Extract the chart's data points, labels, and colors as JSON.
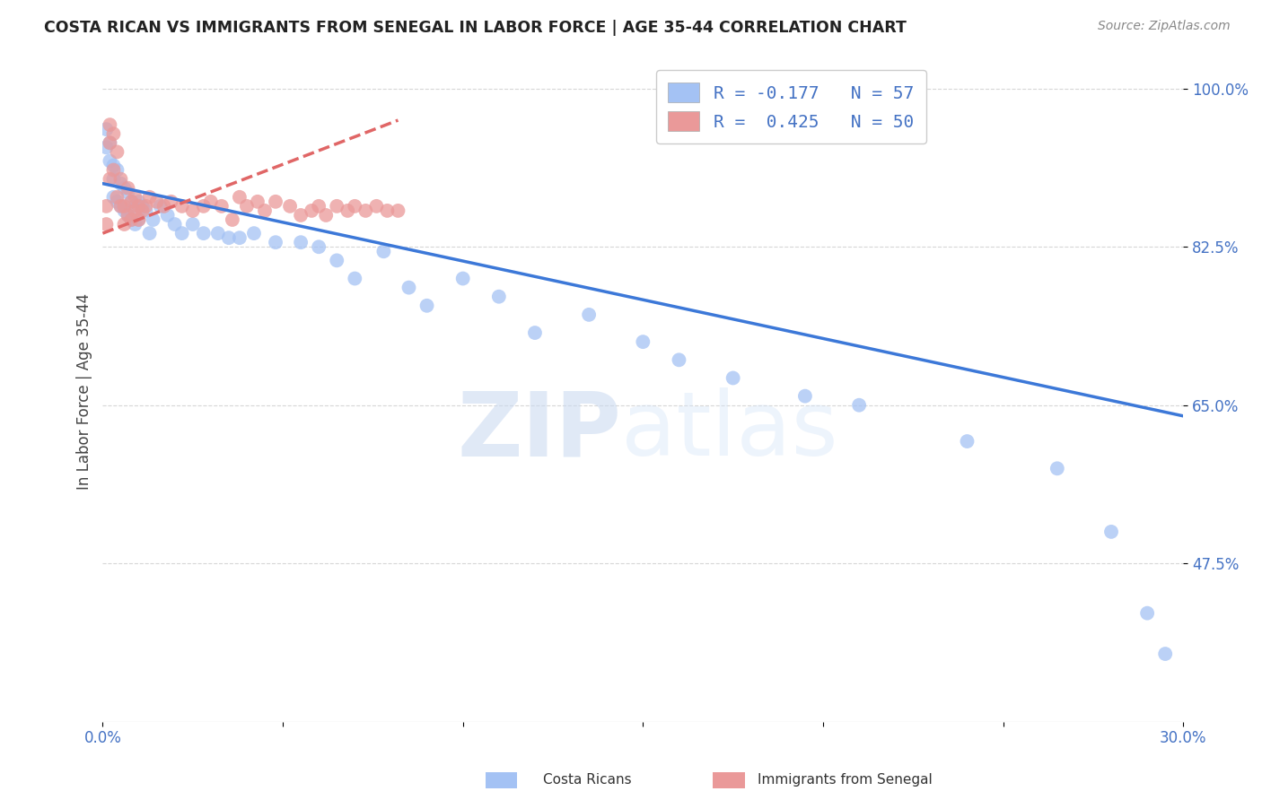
{
  "title": "COSTA RICAN VS IMMIGRANTS FROM SENEGAL IN LABOR FORCE | AGE 35-44 CORRELATION CHART",
  "source": "Source: ZipAtlas.com",
  "ylabel": "In Labor Force | Age 35-44",
  "xlim": [
    0.0,
    0.3
  ],
  "ylim": [
    0.3,
    1.03
  ],
  "xticks": [
    0.0,
    0.05,
    0.1,
    0.15,
    0.2,
    0.25,
    0.3
  ],
  "xticklabels": [
    "0.0%",
    "",
    "",
    "",
    "",
    "",
    "30.0%"
  ],
  "yticks": [
    0.475,
    0.65,
    0.825,
    1.0
  ],
  "yticklabels": [
    "47.5%",
    "65.0%",
    "82.5%",
    "100.0%"
  ],
  "blue_color": "#a4c2f4",
  "pink_color": "#ea9999",
  "blue_line_color": "#3c78d8",
  "pink_line_color": "#e06666",
  "watermark_zip": "ZIP",
  "watermark_atlas": "atlas",
  "legend_line1": "R = -0.177   N = 57",
  "legend_line2": "R =  0.425   N = 50",
  "legend_label_blue": "Costa Ricans",
  "legend_label_pink": "Immigrants from Senegal",
  "blue_dots_x": [
    0.001,
    0.001,
    0.002,
    0.002,
    0.003,
    0.003,
    0.003,
    0.004,
    0.004,
    0.005,
    0.005,
    0.006,
    0.006,
    0.007,
    0.007,
    0.008,
    0.008,
    0.009,
    0.009,
    0.01,
    0.01,
    0.011,
    0.012,
    0.013,
    0.014,
    0.016,
    0.018,
    0.02,
    0.022,
    0.025,
    0.028,
    0.032,
    0.035,
    0.038,
    0.042,
    0.048,
    0.055,
    0.06,
    0.065,
    0.07,
    0.078,
    0.085,
    0.09,
    0.1,
    0.11,
    0.12,
    0.135,
    0.15,
    0.16,
    0.175,
    0.195,
    0.21,
    0.24,
    0.265,
    0.28,
    0.29,
    0.295
  ],
  "blue_dots_y": [
    0.955,
    0.935,
    0.94,
    0.92,
    0.915,
    0.9,
    0.88,
    0.91,
    0.875,
    0.895,
    0.87,
    0.89,
    0.865,
    0.885,
    0.86,
    0.875,
    0.855,
    0.87,
    0.85,
    0.875,
    0.855,
    0.87,
    0.865,
    0.84,
    0.855,
    0.87,
    0.86,
    0.85,
    0.84,
    0.85,
    0.84,
    0.84,
    0.835,
    0.835,
    0.84,
    0.83,
    0.83,
    0.825,
    0.81,
    0.79,
    0.82,
    0.78,
    0.76,
    0.79,
    0.77,
    0.73,
    0.75,
    0.72,
    0.7,
    0.68,
    0.66,
    0.65,
    0.61,
    0.58,
    0.51,
    0.42,
    0.375
  ],
  "pink_dots_x": [
    0.001,
    0.001,
    0.002,
    0.002,
    0.002,
    0.003,
    0.003,
    0.004,
    0.004,
    0.005,
    0.005,
    0.006,
    0.006,
    0.007,
    0.007,
    0.008,
    0.008,
    0.009,
    0.009,
    0.01,
    0.01,
    0.011,
    0.012,
    0.013,
    0.015,
    0.017,
    0.019,
    0.022,
    0.025,
    0.028,
    0.03,
    0.033,
    0.036,
    0.038,
    0.04,
    0.043,
    0.045,
    0.048,
    0.052,
    0.055,
    0.058,
    0.06,
    0.062,
    0.065,
    0.068,
    0.07,
    0.073,
    0.076,
    0.079,
    0.082
  ],
  "pink_dots_y": [
    0.87,
    0.85,
    0.9,
    0.94,
    0.96,
    0.91,
    0.95,
    0.88,
    0.93,
    0.87,
    0.9,
    0.85,
    0.87,
    0.86,
    0.89,
    0.855,
    0.875,
    0.865,
    0.88,
    0.855,
    0.87,
    0.865,
    0.87,
    0.88,
    0.875,
    0.87,
    0.875,
    0.87,
    0.865,
    0.87,
    0.875,
    0.87,
    0.855,
    0.88,
    0.87,
    0.875,
    0.865,
    0.875,
    0.87,
    0.86,
    0.865,
    0.87,
    0.86,
    0.87,
    0.865,
    0.87,
    0.865,
    0.87,
    0.865,
    0.865
  ],
  "blue_trend_x": [
    0.0,
    0.3
  ],
  "blue_trend_y": [
    0.895,
    0.638
  ],
  "pink_trend_x": [
    0.0,
    0.082
  ],
  "pink_trend_y": [
    0.84,
    0.965
  ]
}
